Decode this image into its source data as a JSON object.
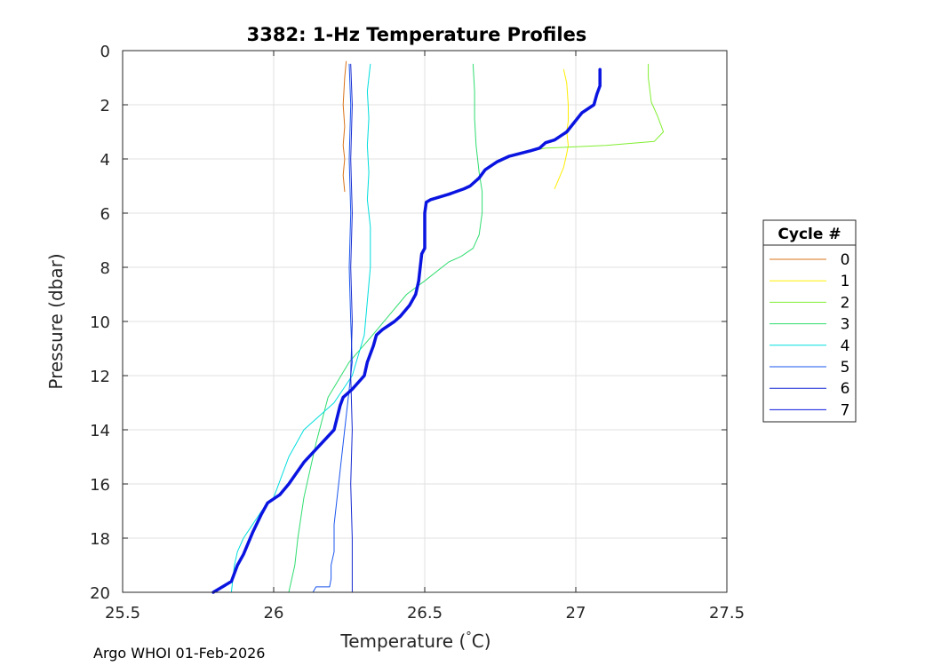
{
  "chart_data": {
    "type": "line",
    "title": "3382: 1-Hz Temperature Profiles",
    "xlabel_main": "Temperature (",
    "xlabel_degree": "°",
    "xlabel_unit": "C)",
    "ylabel": "Pressure (dbar)",
    "xlim": [
      25.5,
      27.5
    ],
    "ylim": [
      0,
      20
    ],
    "y_reversed": true,
    "grid": true,
    "xticks": [
      25.5,
      26,
      26.5,
      27,
      27.5
    ],
    "xtick_labels": [
      "25.5",
      "26",
      "26.5",
      "27",
      "27.5"
    ],
    "yticks": [
      0,
      2,
      4,
      6,
      8,
      10,
      12,
      14,
      16,
      18,
      20
    ],
    "ytick_labels": [
      "0",
      "2",
      "4",
      "6",
      "8",
      "10",
      "12",
      "14",
      "16",
      "18",
      "20"
    ],
    "legend": {
      "title": "Cycle #",
      "placement": "right-outside"
    },
    "series": [
      {
        "name": "0",
        "color": "#d9731a",
        "width": 1,
        "x": [
          26.24,
          26.235,
          26.23,
          26.235,
          26.23,
          26.235,
          26.23,
          26.235
        ],
        "y": [
          0.4,
          1.0,
          2.0,
          2.8,
          3.5,
          4.0,
          4.6,
          5.2
        ]
      },
      {
        "name": "1",
        "color": "#ffee00",
        "width": 1,
        "x": [
          26.96,
          26.97,
          26.975,
          26.975,
          26.97,
          26.975,
          26.97,
          26.96,
          26.93
        ],
        "y": [
          0.7,
          1.2,
          2.0,
          2.6,
          3.0,
          3.5,
          3.8,
          4.3,
          5.1
        ]
      },
      {
        "name": "2",
        "color": "#80ee30",
        "width": 1,
        "x": [
          27.24,
          27.24,
          27.25,
          27.27,
          27.29,
          27.26,
          27.1,
          26.9,
          26.8,
          26.75
        ],
        "y": [
          0.5,
          1.0,
          1.9,
          2.4,
          3.0,
          3.35,
          3.5,
          3.6,
          3.8,
          4.1
        ]
      },
      {
        "name": "3",
        "color": "#30dd70",
        "width": 1,
        "x": [
          26.66,
          26.665,
          26.665,
          26.67,
          26.68,
          26.69,
          26.69,
          26.68,
          26.66,
          26.62,
          26.58,
          26.5,
          26.44,
          26.38,
          26.32,
          26.25,
          26.18,
          26.14,
          26.1,
          26.08,
          26.07,
          26.05
        ],
        "y": [
          0.5,
          1.5,
          2.5,
          3.5,
          4.5,
          5.2,
          6.0,
          6.8,
          7.3,
          7.6,
          7.8,
          8.5,
          9.0,
          9.8,
          10.6,
          11.5,
          12.8,
          14.5,
          16.5,
          18.0,
          19.0,
          20.0
        ]
      },
      {
        "name": "4",
        "color": "#00dddd",
        "width": 1,
        "x": [
          26.32,
          26.31,
          26.315,
          26.31,
          26.315,
          26.31,
          26.32,
          26.32,
          26.3,
          26.26,
          26.2,
          26.15,
          26.1,
          26.05,
          26.0,
          25.96,
          25.93,
          25.9,
          25.88,
          25.87,
          25.86
        ],
        "y": [
          0.5,
          1.5,
          2.5,
          3.5,
          4.5,
          5.5,
          6.5,
          8.0,
          10.5,
          12.0,
          13.0,
          13.5,
          14.0,
          15.0,
          16.5,
          17.0,
          17.5,
          18.0,
          18.5,
          19.0,
          20.0
        ]
      },
      {
        "name": "5",
        "color": "#1a55ee",
        "width": 1,
        "x": [
          26.25,
          26.255,
          26.25,
          26.255,
          26.25,
          26.255,
          26.26,
          26.25,
          26.24,
          26.23,
          26.22,
          26.21,
          26.2,
          26.2,
          26.2,
          26.19,
          26.19,
          26.185,
          26.14,
          26.13
        ],
        "y": [
          0.5,
          2.0,
          4.0,
          6.0,
          8.0,
          10.0,
          11.5,
          12.5,
          13.5,
          14.5,
          15.5,
          16.5,
          17.5,
          18.0,
          18.5,
          19.0,
          19.5,
          19.8,
          19.8,
          20.0
        ]
      },
      {
        "name": "6",
        "color": "#1428d0",
        "width": 1,
        "x": [
          26.255,
          26.26,
          26.255,
          26.26,
          26.255,
          26.26,
          26.255,
          26.26,
          26.255,
          26.26,
          26.26,
          26.26
        ],
        "y": [
          0.5,
          2.0,
          4.0,
          6.0,
          8.0,
          10.0,
          12.0,
          14.0,
          16.0,
          18.0,
          19.5,
          20.0
        ]
      },
      {
        "name": "7",
        "color": "#0a14e0",
        "width": 3.5,
        "x": [
          27.08,
          27.08,
          27.07,
          27.06,
          27.02,
          26.97,
          26.93,
          26.9,
          26.88,
          26.85,
          26.78,
          26.74,
          26.7,
          26.68,
          26.65,
          26.63,
          26.58,
          26.52,
          26.505,
          26.5,
          26.5,
          26.5,
          26.49,
          26.48,
          26.47,
          26.45,
          26.42,
          26.4,
          26.36,
          26.34,
          26.33,
          26.32,
          26.31,
          26.3,
          26.26,
          26.23,
          26.22,
          26.2,
          26.15,
          26.1,
          26.05,
          26.02,
          25.98,
          25.96,
          25.93,
          25.9,
          25.88,
          25.86,
          25.8
        ],
        "y": [
          0.7,
          1.3,
          1.6,
          2.0,
          2.3,
          3.0,
          3.3,
          3.4,
          3.6,
          3.7,
          3.9,
          4.1,
          4.4,
          4.7,
          5.0,
          5.1,
          5.3,
          5.5,
          5.6,
          6.0,
          7.0,
          7.3,
          7.5,
          8.5,
          9.0,
          9.4,
          9.8,
          10.0,
          10.3,
          10.5,
          10.9,
          11.2,
          11.5,
          12.0,
          12.5,
          12.8,
          13.1,
          14.0,
          14.6,
          15.2,
          16.0,
          16.4,
          16.7,
          17.1,
          17.8,
          18.6,
          19.0,
          19.6,
          20.0
        ]
      }
    ]
  },
  "footer": {
    "text": "Argo WHOI 01-Feb-2026"
  }
}
